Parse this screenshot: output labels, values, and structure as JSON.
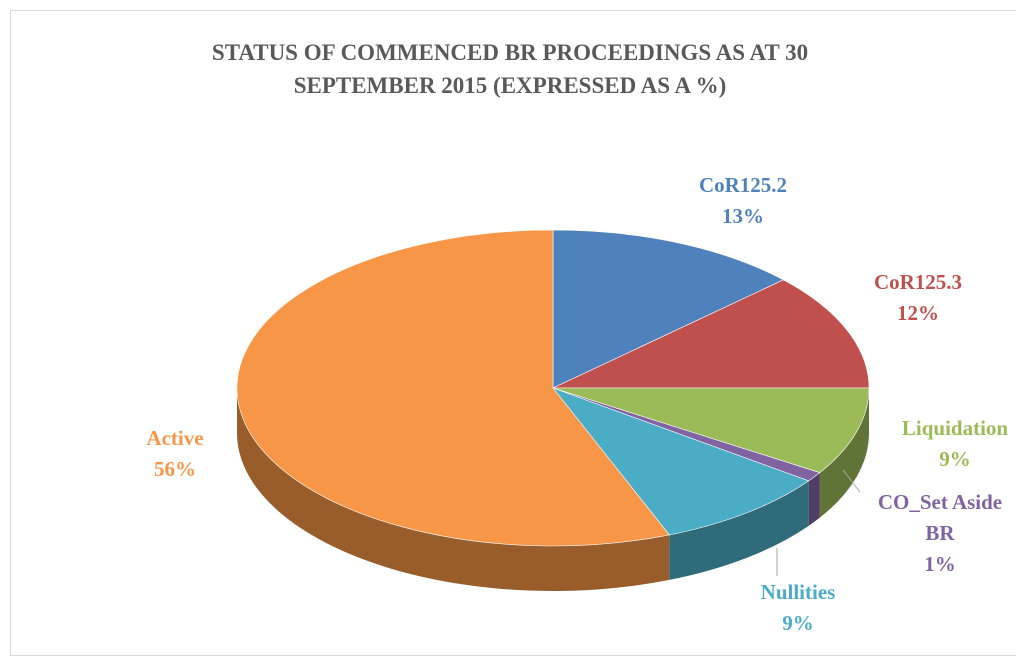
{
  "chart_data": {
    "type": "pie",
    "title": "STATUS OF COMMENCED BR PROCEEDINGS AS AT 30 SEPTEMBER 2015 (EXPRESSED AS A %)",
    "categories": [
      "CoR125.2",
      "CoR125.3",
      "Liquidation",
      "CO_Set Aside BR",
      "Nullities",
      "Active"
    ],
    "values": [
      13,
      12,
      9,
      1,
      9,
      56
    ],
    "value_labels": [
      "13%",
      "12%",
      "9%",
      "1%",
      "9%",
      "56%"
    ],
    "colors": [
      "#4f81bd",
      "#c0504d",
      "#9bbb59",
      "#8064a2",
      "#4bacc6",
      "#f79646"
    ]
  }
}
